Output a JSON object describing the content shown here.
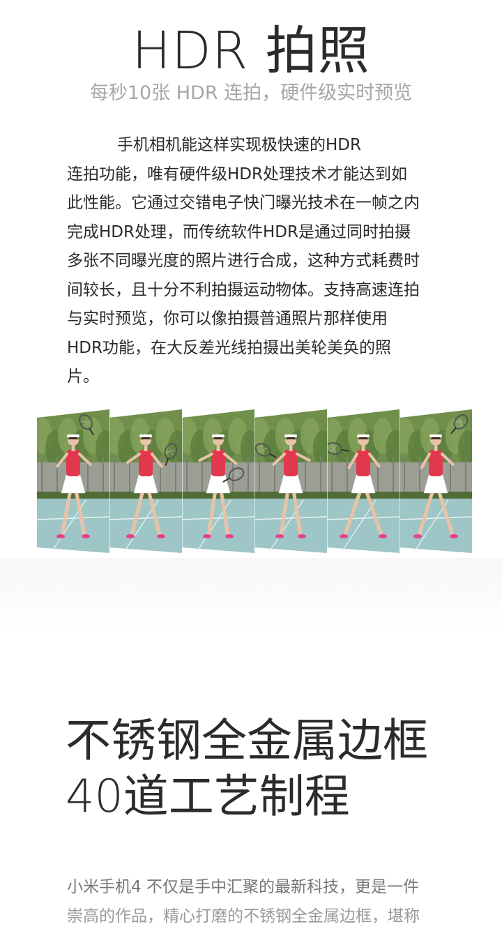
{
  "hdr_section": {
    "title": "HDR 拍照",
    "subtitle": "每秒10张 HDR 连拍，硬件级实时预览",
    "body_lines": [
      "手机相机能这样实现极快速的HDR",
      "连拍功能，唯有硬件级HDR处理技术才能达到如",
      "此性能。它通过交错电子快门曝光技术在一帧之内",
      "完成HDR处理，而传统软件HDR是通过同时拍摄",
      "多张不同曝光度的照片进行合成，这种方式耗费时",
      "间较长，且十分不利拍摄运动物体。支持高速连拍",
      "与实时预览，你可以像拍摄普通照片那样使用",
      "HDR功能，在大反差光线拍摄出美轮美奂的照",
      "片。"
    ],
    "burst_photo": {
      "frame_count": 6,
      "subject": "tennis player swing sequence",
      "colors": {
        "trees": "#6f8f4a",
        "wall": "#9a9e95",
        "court": "#9fc6c7",
        "shirt": "#e2384e",
        "skirt": "#ffffff",
        "skin": "#e8c3a8",
        "shoe": "#e8408a"
      }
    }
  },
  "frame_section": {
    "title_lines": [
      "不锈钢全金属边框",
      "40道工艺制程"
    ],
    "body_lines": [
      "小米手机4 不仅是手中汇聚的最新科技，更是一件",
      "崇高的作品，精心打磨的不锈钢全金属边框，堪称"
    ]
  }
}
